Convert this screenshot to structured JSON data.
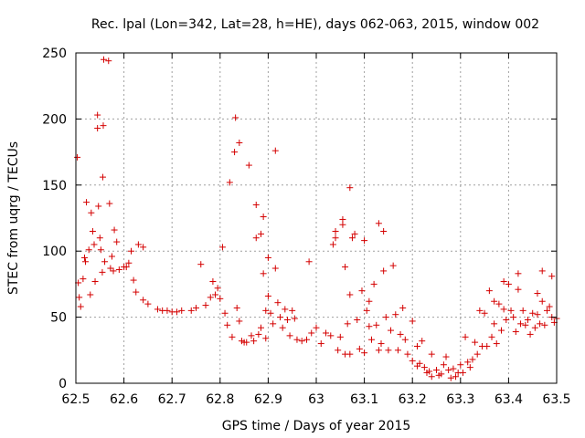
{
  "chart_data": {
    "type": "scatter",
    "title": "Rec. lpal (Lon=342, Lat=28, h=HE), days 062-063, 2015, window 002",
    "xlabel": "GPS time / Days of year 2015",
    "ylabel": "STEC from uqrg / TECUs",
    "xlim": [
      62.5,
      63.5
    ],
    "ylim": [
      0,
      250
    ],
    "xticks": [
      "62.5",
      "62.6",
      "62.7",
      "62.8",
      "62.9",
      "63",
      "63.1",
      "63.2",
      "63.3",
      "63.4",
      "63.5"
    ],
    "yticks": [
      "0",
      "50",
      "100",
      "150",
      "200",
      "250"
    ],
    "grid": true,
    "marker_color": "#d40000",
    "points": [
      [
        62.503,
        171
      ],
      [
        62.505,
        76
      ],
      [
        62.507,
        65
      ],
      [
        62.51,
        58
      ],
      [
        62.515,
        79
      ],
      [
        62.518,
        95
      ],
      [
        62.52,
        92
      ],
      [
        62.522,
        137
      ],
      [
        62.527,
        101
      ],
      [
        62.53,
        67
      ],
      [
        62.532,
        129
      ],
      [
        62.535,
        115
      ],
      [
        62.538,
        105
      ],
      [
        62.54,
        77
      ],
      [
        62.545,
        203
      ],
      [
        62.545,
        193
      ],
      [
        62.547,
        134
      ],
      [
        62.55,
        110
      ],
      [
        62.552,
        101
      ],
      [
        62.555,
        84
      ],
      [
        62.556,
        156
      ],
      [
        62.557,
        195
      ],
      [
        62.558,
        245
      ],
      [
        62.56,
        92
      ],
      [
        62.568,
        244
      ],
      [
        62.57,
        136
      ],
      [
        62.572,
        87
      ],
      [
        62.575,
        96
      ],
      [
        62.578,
        85
      ],
      [
        62.58,
        116
      ],
      [
        62.585,
        107
      ],
      [
        62.59,
        86
      ],
      [
        62.6,
        88
      ],
      [
        62.605,
        88
      ],
      [
        62.61,
        91
      ],
      [
        62.615,
        100
      ],
      [
        62.62,
        78
      ],
      [
        62.625,
        69
      ],
      [
        62.63,
        105
      ],
      [
        62.64,
        103
      ],
      [
        62.64,
        63
      ],
      [
        62.65,
        60
      ],
      [
        62.67,
        56
      ],
      [
        62.68,
        55
      ],
      [
        62.69,
        55
      ],
      [
        62.7,
        54
      ],
      [
        62.71,
        54
      ],
      [
        62.72,
        55
      ],
      [
        62.74,
        55
      ],
      [
        62.75,
        57
      ],
      [
        62.76,
        90
      ],
      [
        62.77,
        59
      ],
      [
        62.78,
        65
      ],
      [
        62.785,
        77
      ],
      [
        62.79,
        67
      ],
      [
        62.795,
        72
      ],
      [
        62.8,
        64
      ],
      [
        62.805,
        103
      ],
      [
        62.81,
        53
      ],
      [
        62.815,
        44
      ],
      [
        62.82,
        152
      ],
      [
        62.825,
        35
      ],
      [
        62.83,
        175
      ],
      [
        62.832,
        201
      ],
      [
        62.835,
        57
      ],
      [
        62.84,
        47
      ],
      [
        62.84,
        182
      ],
      [
        62.845,
        32
      ],
      [
        62.85,
        31
      ],
      [
        62.855,
        31
      ],
      [
        62.86,
        165
      ],
      [
        62.865,
        36
      ],
      [
        62.87,
        32
      ],
      [
        62.875,
        135
      ],
      [
        62.875,
        110
      ],
      [
        62.88,
        37
      ],
      [
        62.885,
        42
      ],
      [
        62.885,
        113
      ],
      [
        62.89,
        83
      ],
      [
        62.89,
        126
      ],
      [
        62.895,
        55
      ],
      [
        62.895,
        34
      ],
      [
        62.9,
        66
      ],
      [
        62.9,
        95
      ],
      [
        62.905,
        53
      ],
      [
        62.91,
        45
      ],
      [
        62.915,
        87
      ],
      [
        62.915,
        176
      ],
      [
        62.92,
        61
      ],
      [
        62.925,
        50
      ],
      [
        62.93,
        42
      ],
      [
        62.935,
        56
      ],
      [
        62.94,
        48
      ],
      [
        62.945,
        36
      ],
      [
        62.95,
        55
      ],
      [
        62.955,
        49
      ],
      [
        62.96,
        33
      ],
      [
        62.97,
        32
      ],
      [
        62.98,
        33
      ],
      [
        62.985,
        92
      ],
      [
        62.99,
        38
      ],
      [
        63.0,
        42
      ],
      [
        63.01,
        30
      ],
      [
        63.02,
        38
      ],
      [
        63.03,
        36
      ],
      [
        63.035,
        105
      ],
      [
        63.04,
        115
      ],
      [
        63.04,
        110
      ],
      [
        63.045,
        25
      ],
      [
        63.05,
        35
      ],
      [
        63.055,
        124
      ],
      [
        63.055,
        120
      ],
      [
        63.06,
        22
      ],
      [
        63.06,
        88
      ],
      [
        63.065,
        45
      ],
      [
        63.07,
        22
      ],
      [
        63.07,
        148
      ],
      [
        63.07,
        67
      ],
      [
        63.075,
        110
      ],
      [
        63.08,
        113
      ],
      [
        63.085,
        48
      ],
      [
        63.09,
        26
      ],
      [
        63.095,
        70
      ],
      [
        63.1,
        23
      ],
      [
        63.1,
        108
      ],
      [
        63.105,
        55
      ],
      [
        63.11,
        62
      ],
      [
        63.11,
        43
      ],
      [
        63.115,
        33
      ],
      [
        63.12,
        75
      ],
      [
        63.125,
        44
      ],
      [
        63.13,
        25
      ],
      [
        63.13,
        121
      ],
      [
        63.135,
        30
      ],
      [
        63.14,
        115
      ],
      [
        63.14,
        85
      ],
      [
        63.145,
        50
      ],
      [
        63.15,
        25
      ],
      [
        63.155,
        40
      ],
      [
        63.16,
        89
      ],
      [
        63.165,
        52
      ],
      [
        63.17,
        25
      ],
      [
        63.175,
        37
      ],
      [
        63.18,
        57
      ],
      [
        63.185,
        33
      ],
      [
        63.19,
        22
      ],
      [
        63.2,
        47
      ],
      [
        63.2,
        17
      ],
      [
        63.21,
        28
      ],
      [
        63.21,
        13
      ],
      [
        63.215,
        15
      ],
      [
        63.22,
        32
      ],
      [
        63.225,
        12
      ],
      [
        63.23,
        8
      ],
      [
        63.235,
        9
      ],
      [
        63.24,
        22
      ],
      [
        63.24,
        5
      ],
      [
        63.25,
        10
      ],
      [
        63.255,
        6
      ],
      [
        63.26,
        7
      ],
      [
        63.265,
        14
      ],
      [
        63.27,
        20
      ],
      [
        63.275,
        10
      ],
      [
        63.28,
        4
      ],
      [
        63.285,
        11
      ],
      [
        63.29,
        5
      ],
      [
        63.295,
        8
      ],
      [
        63.3,
        14
      ],
      [
        63.305,
        8
      ],
      [
        63.31,
        35
      ],
      [
        63.315,
        16
      ],
      [
        63.32,
        12
      ],
      [
        63.325,
        18
      ],
      [
        63.33,
        31
      ],
      [
        63.335,
        22
      ],
      [
        63.34,
        55
      ],
      [
        63.345,
        28
      ],
      [
        63.35,
        53
      ],
      [
        63.355,
        28
      ],
      [
        63.36,
        70
      ],
      [
        63.365,
        35
      ],
      [
        63.37,
        62
      ],
      [
        63.37,
        45
      ],
      [
        63.375,
        30
      ],
      [
        63.38,
        60
      ],
      [
        63.385,
        40
      ],
      [
        63.39,
        56
      ],
      [
        63.39,
        77
      ],
      [
        63.395,
        48
      ],
      [
        63.4,
        75
      ],
      [
        63.405,
        55
      ],
      [
        63.41,
        50
      ],
      [
        63.415,
        39
      ],
      [
        63.42,
        83
      ],
      [
        63.42,
        71
      ],
      [
        63.425,
        45
      ],
      [
        63.43,
        55
      ],
      [
        63.435,
        44
      ],
      [
        63.44,
        48
      ],
      [
        63.445,
        37
      ],
      [
        63.45,
        53
      ],
      [
        63.455,
        42
      ],
      [
        63.46,
        68
      ],
      [
        63.46,
        52
      ],
      [
        63.465,
        45
      ],
      [
        63.47,
        62
      ],
      [
        63.47,
        85
      ],
      [
        63.475,
        44
      ],
      [
        63.48,
        55
      ],
      [
        63.485,
        58
      ],
      [
        63.49,
        81
      ],
      [
        63.49,
        50
      ],
      [
        63.495,
        46
      ],
      [
        63.5,
        49
      ]
    ]
  }
}
